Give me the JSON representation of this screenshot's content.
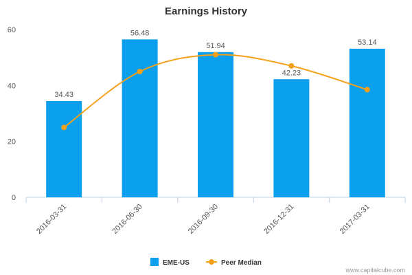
{
  "chart_data": {
    "type": "bar",
    "title": "Earnings History",
    "categories": [
      "2016-03-31",
      "2016-06-30",
      "2016-09-30",
      "2016-12-31",
      "2017-03-31"
    ],
    "series": [
      {
        "name": "EME-US",
        "type": "bar",
        "color": "#0aa0ee",
        "values": [
          34.43,
          56.48,
          51.94,
          42.23,
          53.14
        ]
      },
      {
        "name": "Peer Median",
        "type": "line",
        "color": "#f5a01a",
        "values": [
          25.0,
          45.0,
          51.0,
          47.0,
          38.5
        ]
      }
    ],
    "data_labels": [
      "34.43",
      "56.48",
      "51.94",
      "42.23",
      "53.14"
    ],
    "yticks": [
      "0",
      "20",
      "40",
      "60"
    ],
    "ylim": [
      0,
      60
    ],
    "xlabel": "",
    "ylabel": "",
    "legend_position": "bottom-center",
    "grid": false
  },
  "footer": {
    "source": "www.capitalcube.com"
  }
}
